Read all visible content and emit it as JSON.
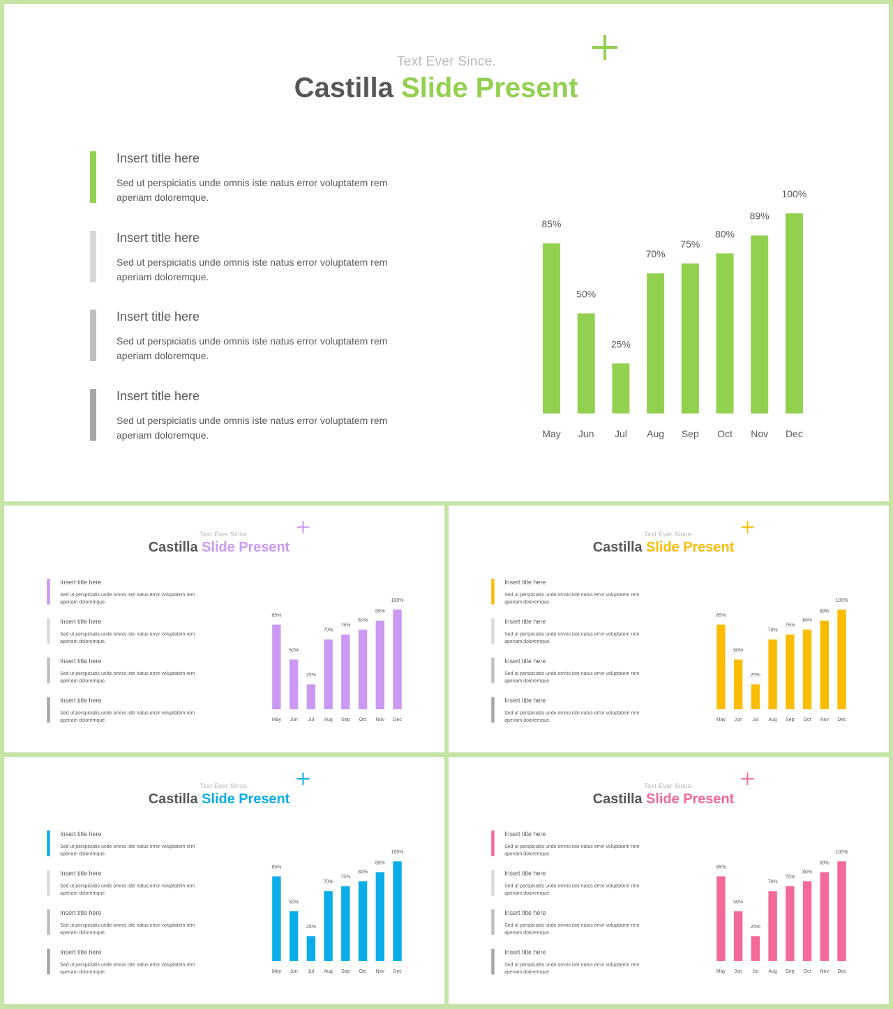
{
  "slides": [
    {
      "accent": "#92d050"
    },
    {
      "accent": "#cc99f2"
    },
    {
      "accent": "#fbbc05"
    },
    {
      "accent": "#0bade8"
    },
    {
      "accent": "#f2699a"
    }
  ],
  "slide_text": {
    "subtitle": "Text Ever Since.",
    "title_part1": "Castilla",
    "title_part2": "Slide Present",
    "items": [
      {
        "title": "Insert title here",
        "body": "Sed ut perspiciatis unde omnis iste natus error voluptatem rem aperiam doloremque.",
        "bar_color": "accent"
      },
      {
        "title": "Insert title here",
        "body": "Sed ut perspiciatis unde omnis iste natus error voluptatem rem aperiam doloremque.",
        "bar_color": "#d9d9d9"
      },
      {
        "title": "Insert title here",
        "body": "Sed ut perspiciatis unde omnis iste natus error voluptatem rem aperiam doloremque.",
        "bar_color": "#bfbfbf"
      },
      {
        "title": "Insert title here",
        "body": "Sed ut perspiciatis unde omnis iste natus error voluptatem rem aperiam doloremque.",
        "bar_color": "#a6a6a6"
      }
    ]
  },
  "chart_data": {
    "type": "bar",
    "categories": [
      "May",
      "Jun",
      "Jul",
      "Aug",
      "Sep",
      "Oct",
      "Nov",
      "Dec"
    ],
    "values": [
      85,
      50,
      25,
      70,
      75,
      80,
      89,
      100
    ],
    "data_labels": [
      "85%",
      "50%",
      "25%",
      "70%",
      "75%",
      "80%",
      "89%",
      "100%"
    ],
    "ylim": [
      0,
      100
    ],
    "grid": false,
    "legend": "none"
  }
}
